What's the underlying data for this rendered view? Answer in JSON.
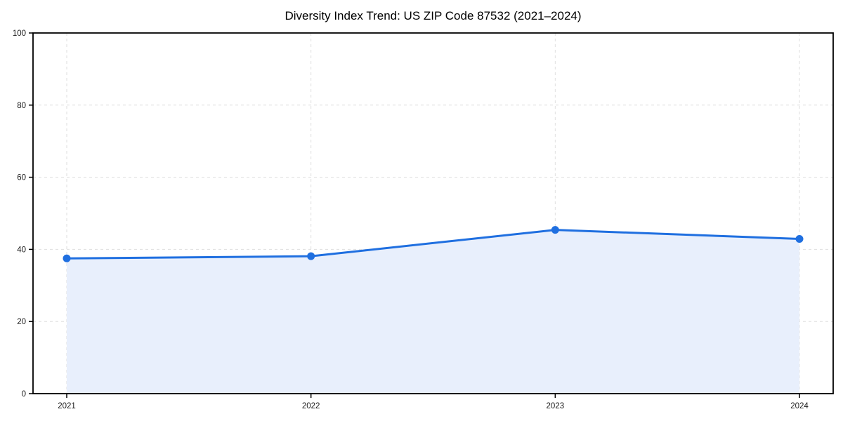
{
  "chart_data": {
    "type": "area",
    "title": "Diversity Index Trend: US ZIP Code 87532 (2021–2024)",
    "categories": [
      "2021",
      "2022",
      "2023",
      "2024"
    ],
    "x": [
      2021,
      2022,
      2023,
      2024
    ],
    "series": [
      {
        "name": "Diversity Index",
        "values": [
          37.5,
          38.1,
          45.4,
          42.9
        ]
      }
    ],
    "xlabel": "",
    "ylabel": "",
    "ylim": [
      0,
      100
    ],
    "yticks": [
      0,
      20,
      40,
      60,
      80,
      100
    ],
    "grid": true,
    "grid_style": "dashed",
    "legend_position": "none",
    "colors": {
      "line": "#1f6fe0",
      "marker": "#1f6fe0",
      "fill": "#e8effc",
      "grid": "#dedede",
      "spine": "#000000",
      "tick_text": "#1a1a1a"
    }
  }
}
